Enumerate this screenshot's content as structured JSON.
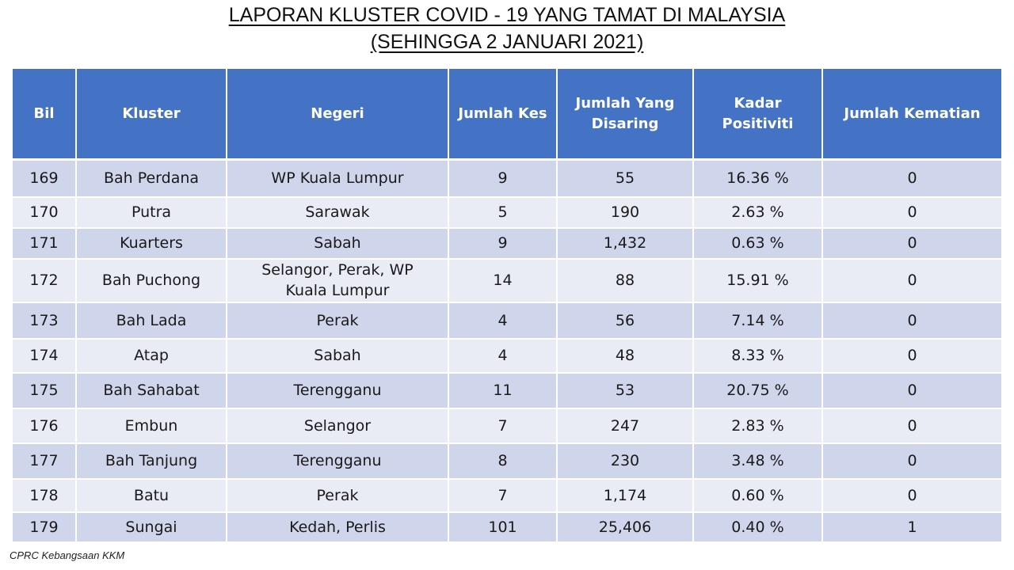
{
  "title_line1": "LAPORAN KLUSTER COVID - 19 YANG TAMAT DI MALAYSIA",
  "title_line2": "(SEHINGGA 2 JANUARI 2021)",
  "columns": [
    "Bil",
    "Kluster",
    "Negeri",
    "Jumlah Kes",
    "Jumlah Yang Disaring",
    "Kadar Positiviti",
    "Jumlah Kematian"
  ],
  "rows": [
    {
      "bil": "169",
      "kluster": "Bah Perdana",
      "negeri": "WP Kuala Lumpur",
      "kes": "9",
      "disaring": "55",
      "positiviti": "16.36 %",
      "kematian": "0"
    },
    {
      "bil": "170",
      "kluster": "Putra",
      "negeri": "Sarawak",
      "kes": "5",
      "disaring": "190",
      "positiviti": "2.63 %",
      "kematian": "0"
    },
    {
      "bil": "171",
      "kluster": "Kuarters",
      "negeri": "Sabah",
      "kes": "9",
      "disaring": "1,432",
      "positiviti": "0.63 %",
      "kematian": "0"
    },
    {
      "bil": "172",
      "kluster": "Bah Puchong",
      "negeri": "Selangor, Perak, WP Kuala Lumpur",
      "kes": "14",
      "disaring": "88",
      "positiviti": "15.91 %",
      "kematian": "0"
    },
    {
      "bil": "173",
      "kluster": "Bah Lada",
      "negeri": "Perak",
      "kes": "4",
      "disaring": "56",
      "positiviti": "7.14 %",
      "kematian": "0"
    },
    {
      "bil": "174",
      "kluster": "Atap",
      "negeri": "Sabah",
      "kes": "4",
      "disaring": "48",
      "positiviti": "8.33 %",
      "kematian": "0"
    },
    {
      "bil": "175",
      "kluster": "Bah Sahabat",
      "negeri": "Terengganu",
      "kes": "11",
      "disaring": "53",
      "positiviti": "20.75 %",
      "kematian": "0"
    },
    {
      "bil": "176",
      "kluster": "Embun",
      "negeri": "Selangor",
      "kes": "7",
      "disaring": "247",
      "positiviti": "2.83 %",
      "kematian": "0"
    },
    {
      "bil": "177",
      "kluster": "Bah Tanjung",
      "negeri": "Terengganu",
      "kes": "8",
      "disaring": "230",
      "positiviti": "3.48 %",
      "kematian": "0"
    },
    {
      "bil": "178",
      "kluster": "Batu",
      "negeri": "Perak",
      "kes": "7",
      "disaring": "1,174",
      "positiviti": "0.60 %",
      "kematian": "0"
    },
    {
      "bil": "179",
      "kluster": "Sungai",
      "negeri": "Kedah, Perlis",
      "kes": "101",
      "disaring": "25,406",
      "positiviti": "0.40 %",
      "kematian": "1"
    }
  ],
  "footnote": "CPRC Kebangsaan KKM",
  "colors": {
    "header_bg": "#4472c4",
    "row_dark": "#cfd5ea",
    "row_light": "#e9ebf5"
  }
}
